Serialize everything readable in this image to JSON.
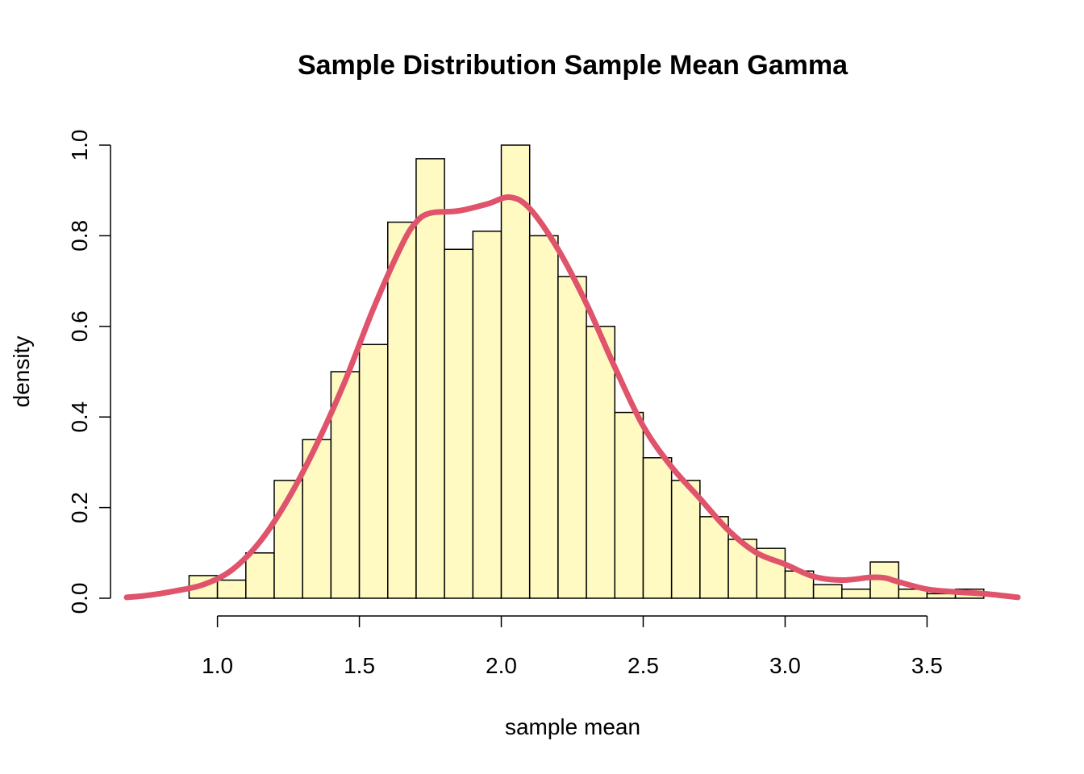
{
  "chart_data": {
    "type": "bar",
    "subtype": "histogram",
    "title": "Sample Distribution Sample Mean Gamma",
    "xlabel": "sample mean",
    "ylabel": "density",
    "xlim": [
      0.68,
      3.82
    ],
    "ylim": [
      0,
      1.0
    ],
    "x_ticks": [
      1.0,
      1.5,
      2.0,
      2.5,
      3.0,
      3.5
    ],
    "x_tick_labels": [
      "1.0",
      "1.5",
      "2.0",
      "2.5",
      "3.0",
      "3.5"
    ],
    "y_ticks": [
      0.0,
      0.2,
      0.4,
      0.6,
      0.8,
      1.0
    ],
    "y_tick_labels": [
      "0.0",
      "0.2",
      "0.4",
      "0.6",
      "0.8",
      "1.0"
    ],
    "grid": false,
    "bar_fill": "#FFFAC2",
    "bins": [
      {
        "x0": 0.8,
        "x1": 0.9,
        "density": 0.0
      },
      {
        "x0": 0.9,
        "x1": 1.0,
        "density": 0.05
      },
      {
        "x0": 1.0,
        "x1": 1.1,
        "density": 0.04
      },
      {
        "x0": 1.1,
        "x1": 1.2,
        "density": 0.1
      },
      {
        "x0": 1.2,
        "x1": 1.3,
        "density": 0.26
      },
      {
        "x0": 1.3,
        "x1": 1.4,
        "density": 0.35
      },
      {
        "x0": 1.4,
        "x1": 1.5,
        "density": 0.5
      },
      {
        "x0": 1.5,
        "x1": 1.6,
        "density": 0.56
      },
      {
        "x0": 1.6,
        "x1": 1.7,
        "density": 0.83
      },
      {
        "x0": 1.7,
        "x1": 1.8,
        "density": 0.97
      },
      {
        "x0": 1.8,
        "x1": 1.9,
        "density": 0.77
      },
      {
        "x0": 1.9,
        "x1": 2.0,
        "density": 0.81
      },
      {
        "x0": 2.0,
        "x1": 2.1,
        "density": 1.0
      },
      {
        "x0": 2.1,
        "x1": 2.2,
        "density": 0.8
      },
      {
        "x0": 2.2,
        "x1": 2.3,
        "density": 0.71
      },
      {
        "x0": 2.3,
        "x1": 2.4,
        "density": 0.6
      },
      {
        "x0": 2.4,
        "x1": 2.5,
        "density": 0.41
      },
      {
        "x0": 2.5,
        "x1": 2.6,
        "density": 0.31
      },
      {
        "x0": 2.6,
        "x1": 2.7,
        "density": 0.26
      },
      {
        "x0": 2.7,
        "x1": 2.8,
        "density": 0.18
      },
      {
        "x0": 2.8,
        "x1": 2.9,
        "density": 0.13
      },
      {
        "x0": 2.9,
        "x1": 3.0,
        "density": 0.11
      },
      {
        "x0": 3.0,
        "x1": 3.1,
        "density": 0.06
      },
      {
        "x0": 3.1,
        "x1": 3.2,
        "density": 0.03
      },
      {
        "x0": 3.2,
        "x1": 3.3,
        "density": 0.02
      },
      {
        "x0": 3.3,
        "x1": 3.4,
        "density": 0.08
      },
      {
        "x0": 3.4,
        "x1": 3.5,
        "density": 0.02
      },
      {
        "x0": 3.5,
        "x1": 3.6,
        "density": 0.01
      },
      {
        "x0": 3.6,
        "x1": 3.7,
        "density": 0.02
      }
    ],
    "density_curve": {
      "color": "#DF536B",
      "x": [
        0.68,
        0.75,
        0.85,
        0.95,
        1.05,
        1.15,
        1.25,
        1.35,
        1.45,
        1.55,
        1.65,
        1.7,
        1.75,
        1.85,
        1.95,
        2.03,
        2.1,
        2.2,
        2.3,
        2.4,
        2.5,
        2.6,
        2.7,
        2.8,
        2.9,
        3.0,
        3.1,
        3.2,
        3.3,
        3.35,
        3.4,
        3.5,
        3.6,
        3.7,
        3.82
      ],
      "y": [
        0.002,
        0.006,
        0.016,
        0.03,
        0.062,
        0.125,
        0.22,
        0.34,
        0.48,
        0.64,
        0.78,
        0.83,
        0.85,
        0.855,
        0.87,
        0.885,
        0.86,
        0.77,
        0.65,
        0.51,
        0.38,
        0.29,
        0.22,
        0.15,
        0.1,
        0.075,
        0.048,
        0.04,
        0.046,
        0.045,
        0.036,
        0.02,
        0.014,
        0.01,
        0.002
      ]
    }
  }
}
